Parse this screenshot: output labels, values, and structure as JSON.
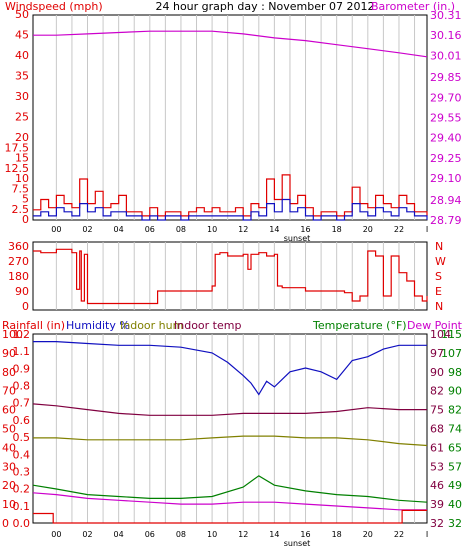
{
  "colors": {
    "frame": "#000000",
    "grid": "#c8c8c8",
    "windspeed": "#e00000",
    "gust": "#1010c0",
    "barometer": "#cc00cc",
    "direction": "#e00000",
    "humidity": "#1010c0",
    "indoor_hum": "#808000",
    "indoor_temp": "#800040",
    "temperature": "#008000",
    "dew_point": "#cc00cc",
    "rainfall": "#e00000"
  },
  "chart_data": [
    {
      "type": "line",
      "title": "24 hour graph day : November 07 2012",
      "left_label": "Windspeed (mph)",
      "right_label": "Barometer (in.)",
      "x_ticks": [
        "00",
        "02",
        "04",
        "06",
        "08",
        "10",
        "12",
        "14",
        "16",
        "18",
        "20",
        "22"
      ],
      "x_note": "sunset",
      "left_axis": {
        "range": [
          0,
          50
        ],
        "ticks": [
          "0",
          "2.5",
          "5",
          "7.5",
          "10",
          "12.5",
          "15",
          "17.5",
          "20",
          "25",
          "30",
          "35",
          "40",
          "45",
          "50"
        ]
      },
      "right_axis": {
        "range": [
          28.79,
          30.31
        ],
        "ticks": [
          "28.79",
          "28.94",
          "29.10",
          "29.25",
          "29.40",
          "29.55",
          "29.70",
          "29.85",
          "30.01",
          "30.16",
          "30.31"
        ]
      },
      "series": [
        {
          "id": "barometer",
          "axis": "right",
          "x": [
            -1.5,
            0,
            2,
            4,
            6,
            8,
            10,
            12,
            14,
            16,
            18,
            20,
            22,
            23.8
          ],
          "y": [
            30.16,
            30.16,
            30.17,
            30.18,
            30.19,
            30.19,
            30.19,
            30.17,
            30.14,
            30.12,
            30.09,
            30.06,
            30.03,
            30.0
          ]
        },
        {
          "id": "windspeed",
          "axis": "left",
          "x": [
            -1.5,
            -1,
            -0.5,
            0,
            0.5,
            1,
            1.5,
            2,
            2.5,
            3,
            3.5,
            4,
            4.5,
            5,
            5.5,
            6,
            6.5,
            7,
            7.5,
            8,
            8.5,
            9,
            9.5,
            10,
            10.5,
            11,
            11.5,
            12,
            12.5,
            13,
            13.5,
            14,
            14.5,
            15,
            15.5,
            16,
            16.5,
            17,
            17.5,
            18,
            18.5,
            19,
            19.5,
            20,
            20.5,
            21,
            21.5,
            22,
            22.5,
            23,
            23.8
          ],
          "y": [
            2.5,
            5,
            3,
            6,
            4,
            3,
            10,
            4,
            7,
            3,
            4,
            6,
            2,
            2,
            1,
            3,
            1,
            2,
            2,
            1,
            2,
            3,
            2,
            3,
            2,
            2,
            3,
            1,
            4,
            3,
            10,
            5,
            11,
            4,
            6,
            3,
            1,
            2,
            2,
            1,
            2,
            8,
            4,
            3,
            6,
            4,
            3,
            6,
            4,
            2,
            1
          ]
        },
        {
          "id": "gust",
          "axis": "left",
          "x": [
            -1.5,
            -1,
            -0.5,
            0,
            0.5,
            1,
            1.5,
            2,
            2.5,
            3,
            3.5,
            4,
            4.5,
            5,
            5.5,
            6,
            6.5,
            7,
            7.5,
            8,
            8.5,
            9,
            9.5,
            10,
            10.5,
            11,
            11.5,
            12,
            12.5,
            13,
            13.5,
            14,
            14.5,
            15,
            15.5,
            16,
            16.5,
            17,
            17.5,
            18,
            18.5,
            19,
            19.5,
            20,
            20.5,
            21,
            21.5,
            22,
            22.5,
            23,
            23.8
          ],
          "y": [
            1,
            2,
            1,
            3,
            2,
            1,
            4,
            2,
            3,
            1,
            2,
            2,
            1,
            1,
            0,
            1,
            0,
            1,
            1,
            0,
            1,
            1,
            1,
            1,
            1,
            1,
            1,
            0,
            2,
            1,
            4,
            2,
            5,
            2,
            3,
            1,
            0,
            1,
            1,
            0,
            1,
            4,
            2,
            1,
            3,
            2,
            1,
            3,
            2,
            1,
            0
          ]
        }
      ]
    },
    {
      "type": "line",
      "left_axis": {
        "range": [
          0,
          360
        ],
        "ticks": [
          "0",
          "90",
          "180",
          "270",
          "360"
        ]
      },
      "right_labels": [
        "N",
        "W",
        "S",
        "E",
        "N"
      ],
      "series": [
        {
          "id": "direction",
          "x": [
            -1.5,
            -1,
            0,
            1,
            1.3,
            1.5,
            1.6,
            1.8,
            2,
            3,
            4,
            5,
            6,
            6.5,
            8,
            10,
            10.2,
            10.5,
            11,
            12,
            12.3,
            12.5,
            13,
            13.5,
            14,
            14.2,
            14.5,
            15,
            16,
            17,
            18,
            18.5,
            19,
            19.5,
            20,
            20.5,
            21,
            21.5,
            22,
            22.5,
            23,
            23.5,
            23.8
          ],
          "y": [
            330,
            320,
            340,
            320,
            100,
            330,
            30,
            310,
            15,
            15,
            15,
            15,
            15,
            90,
            90,
            120,
            310,
            320,
            300,
            310,
            220,
            310,
            320,
            300,
            310,
            120,
            110,
            110,
            90,
            90,
            90,
            80,
            30,
            60,
            330,
            300,
            60,
            300,
            200,
            150,
            60,
            30,
            60
          ]
        }
      ]
    },
    {
      "type": "line",
      "left_labels": [
        "Rainfall (in)",
        "Humidity %",
        "Indoor hum",
        "Indoor temp"
      ],
      "right_labels": [
        "Temperature (°F)",
        "Dew Point"
      ],
      "rain_axis": {
        "range": [
          0,
          1.2
        ],
        "ticks": [
          "0.0",
          "0.1",
          "0.2",
          "0.3",
          "0.4",
          "0.5",
          "0.6",
          "0.7",
          "0.8",
          "0.9",
          "1.1",
          "1.2"
        ]
      },
      "humidity_axis": {
        "range": [
          0,
          100
        ],
        "ticks": [
          "0",
          "10",
          "20",
          "30",
          "40",
          "50",
          "60",
          "70",
          "80",
          "90",
          "100"
        ]
      },
      "temp_axis": {
        "range": [
          32,
          115
        ],
        "ticks_inner": [
          "32",
          "39",
          "46",
          "53",
          "61",
          "68",
          "75",
          "82",
          "90",
          "97",
          "104"
        ],
        "ticks_outer": [
          "32",
          "40",
          "49",
          "57",
          "65",
          "74",
          "82",
          "90",
          "98",
          "107",
          "115"
        ]
      },
      "x_ticks": [
        "00",
        "02",
        "04",
        "06",
        "08",
        "10",
        "12",
        "14",
        "16",
        "18",
        "20",
        "22"
      ],
      "x_note": "sunset",
      "series": [
        {
          "id": "humidity",
          "axis": "humidity",
          "x": [
            -1.5,
            0,
            2,
            4,
            6,
            8,
            10,
            11,
            12,
            12.5,
            13,
            13.5,
            14,
            15,
            16,
            17,
            18,
            19,
            20,
            21,
            22,
            23.8
          ],
          "y": [
            96,
            96,
            95,
            94,
            94,
            93,
            90,
            85,
            78,
            74,
            68,
            75,
            72,
            80,
            82,
            80,
            76,
            86,
            88,
            92,
            94,
            94
          ]
        },
        {
          "id": "indoor_temp",
          "axis": "humidity",
          "x": [
            -1.5,
            0,
            2,
            4,
            6,
            8,
            10,
            12,
            14,
            16,
            18,
            20,
            22,
            23.8
          ],
          "y": [
            63,
            62,
            60,
            58,
            57,
            57,
            57,
            58,
            58,
            58,
            59,
            61,
            60,
            60
          ]
        },
        {
          "id": "indoor_hum",
          "axis": "humidity",
          "x": [
            -1.5,
            0,
            2,
            4,
            6,
            8,
            10,
            12,
            14,
            16,
            18,
            20,
            22,
            23.8
          ],
          "y": [
            45,
            45,
            44,
            44,
            44,
            44,
            45,
            46,
            46,
            45,
            45,
            44,
            42,
            41
          ]
        },
        {
          "id": "temperature",
          "axis": "humidity",
          "x": [
            -1.5,
            0,
            2,
            4,
            6,
            8,
            10,
            12,
            13,
            14,
            16,
            18,
            20,
            22,
            23.8
          ],
          "y": [
            20,
            18,
            15,
            14,
            13,
            13,
            14,
            19,
            25,
            20,
            17,
            15,
            14,
            12,
            11
          ]
        },
        {
          "id": "dew_point",
          "axis": "humidity",
          "x": [
            -1.5,
            0,
            2,
            4,
            6,
            8,
            10,
            12,
            14,
            16,
            18,
            20,
            22,
            23.8
          ],
          "y": [
            16,
            15,
            13,
            12,
            11,
            10,
            10,
            11,
            11,
            10,
            9,
            8,
            7,
            7
          ]
        },
        {
          "id": "rainfall",
          "axis": "rain",
          "x": [
            -1.5,
            -0.2,
            -0.2,
            22.2,
            22.2,
            23.8
          ],
          "y": [
            0.06,
            0.06,
            0.0,
            0.0,
            0.08,
            0.08
          ]
        }
      ]
    }
  ]
}
